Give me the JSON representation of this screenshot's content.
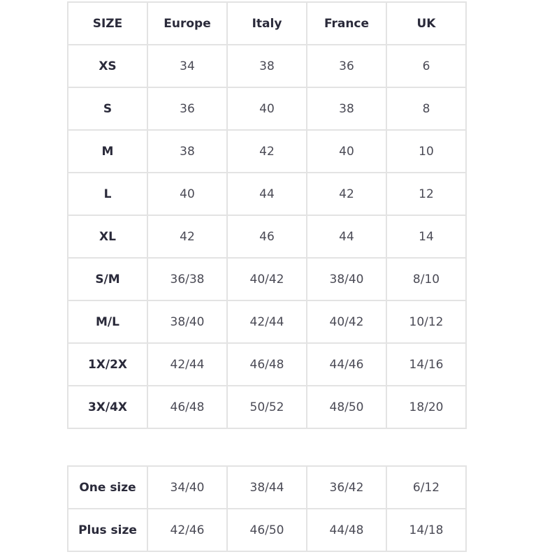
{
  "size_table": {
    "headers": [
      "SIZE",
      "Europe",
      "Italy",
      "France",
      "UK"
    ],
    "rows": [
      [
        "XS",
        "34",
        "38",
        "36",
        "6"
      ],
      [
        "S",
        "36",
        "40",
        "38",
        "8"
      ],
      [
        "M",
        "38",
        "42",
        "40",
        "10"
      ],
      [
        "L",
        "40",
        "44",
        "42",
        "12"
      ],
      [
        "XL",
        "42",
        "46",
        "44",
        "14"
      ],
      [
        "S/M",
        "36/38",
        "40/42",
        "38/40",
        "8/10"
      ],
      [
        "M/L",
        "38/40",
        "42/44",
        "40/42",
        "10/12"
      ],
      [
        "1X/2X",
        "42/44",
        "46/48",
        "44/46",
        "14/16"
      ],
      [
        "3X/4X",
        "46/48",
        "50/52",
        "48/50",
        "18/20"
      ]
    ]
  },
  "extra_table": {
    "rows": [
      [
        "One size",
        "34/40",
        "38/44",
        "36/42",
        "6/12"
      ],
      [
        "Plus size",
        "42/46",
        "46/50",
        "44/48",
        "14/18"
      ]
    ]
  }
}
